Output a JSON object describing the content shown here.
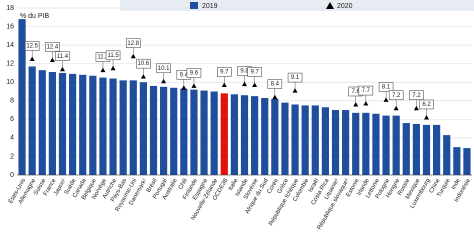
{
  "chart_data": {
    "type": "bar",
    "y_label": "% du PIB",
    "categories": [
      "États-Unis",
      "Allemagne",
      "Suisse",
      "France",
      "Japon¹",
      "Suède",
      "Canada",
      "Belgique",
      "Norvège",
      "Autriche",
      "Pays-Bas",
      "Royaume-Uni",
      "Danemark¹",
      "Brésil",
      "Portugal",
      "Australie",
      "Chili",
      "Finlande",
      "Espagne",
      "Nouvelle-Zélande",
      "OCDE38",
      "Italie",
      "Islande",
      "Slovénie",
      "Afrique du Sud",
      "Corée",
      "Grèce",
      "République tchèque",
      "Colombie",
      "Israël",
      "Costa Rica",
      "Lituanie¹",
      "République slovaque¹",
      "Estonie",
      "Irlande",
      "Lettonie",
      "Pologne",
      "Hongrie",
      "Russie",
      "Mexique",
      "Luxembourg",
      "Chine",
      "Turquie",
      "Inde",
      "Indonésie"
    ],
    "series": [
      {
        "name": "2019",
        "color": "#1f4e9c",
        "values": [
          16.8,
          11.7,
          11.3,
          11.1,
          11.0,
          10.9,
          10.8,
          10.7,
          10.5,
          10.4,
          10.2,
          10.2,
          10.0,
          9.6,
          9.5,
          9.4,
          9.3,
          9.2,
          9.1,
          9.0,
          8.8,
          8.7,
          8.6,
          8.5,
          8.3,
          8.2,
          7.8,
          7.6,
          7.5,
          7.5,
          7.3,
          7.0,
          7.0,
          6.7,
          6.7,
          6.6,
          6.4,
          6.4,
          5.6,
          5.5,
          5.4,
          5.4,
          4.3,
          3.0,
          2.9
        ]
      },
      {
        "name": "2020",
        "color": "#000000",
        "marker": "triangle",
        "values": [
          null,
          12.5,
          null,
          12.4,
          11.4,
          null,
          null,
          null,
          11.3,
          11.5,
          null,
          12.8,
          10.6,
          null,
          10.1,
          null,
          9.4,
          9.6,
          null,
          null,
          9.7,
          null,
          9.8,
          9.7,
          null,
          8.4,
          null,
          9.1,
          null,
          null,
          null,
          null,
          null,
          7.6,
          7.7,
          null,
          8.1,
          7.2,
          null,
          7.2,
          6.2,
          null,
          null,
          null,
          null
        ]
      }
    ],
    "highlight": {
      "category": "OCDE38",
      "color": "#e3120b"
    },
    "ylim": [
      0,
      18
    ],
    "yticks": [
      0,
      2,
      4,
      6,
      8,
      10,
      12,
      14,
      16,
      18
    ],
    "grid": true
  }
}
